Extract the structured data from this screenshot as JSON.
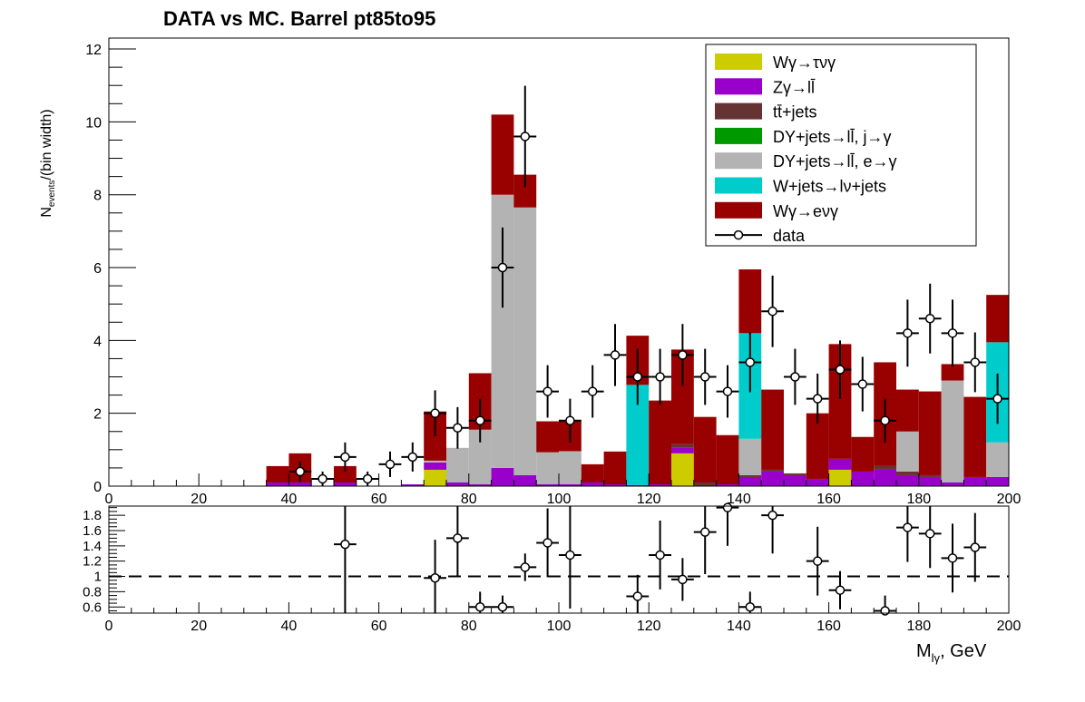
{
  "chart_data": {
    "type": "bar",
    "stacked": true,
    "title": "DATA vs MC. Barrel  pt85to95",
    "ylabel_main": "N",
    "ylabel_sub": "events",
    "ylabel_tail": "/(bin width)",
    "xlabel_main": "M",
    "xlabel_sub": "lγ",
    "xlabel_tail": ", GeV",
    "xlim": [
      0,
      200
    ],
    "ylim": [
      0,
      12.3
    ],
    "ratio_ylim": [
      0.52,
      1.92
    ],
    "bin_width": 5,
    "x_ticks": [
      0,
      20,
      40,
      60,
      80,
      100,
      120,
      140,
      160,
      180,
      200
    ],
    "y_ticks": [
      0,
      2,
      4,
      6,
      8,
      10,
      12
    ],
    "ratio_ticks": [
      0.6,
      0.8,
      1,
      1.2,
      1.4,
      1.6,
      1.8
    ],
    "ratio_reference": 1,
    "bin_edges_low": [
      0,
      5,
      10,
      15,
      20,
      25,
      30,
      35,
      40,
      45,
      50,
      55,
      60,
      65,
      70,
      75,
      80,
      85,
      90,
      95,
      100,
      105,
      110,
      115,
      120,
      125,
      130,
      135,
      140,
      145,
      150,
      155,
      160,
      165,
      170,
      175,
      180,
      185,
      190,
      195
    ],
    "series": [
      {
        "name": "Wγ→τνγ",
        "color": "#cccc00",
        "values": [
          0,
          0,
          0,
          0,
          0,
          0,
          0,
          0,
          0,
          0,
          0,
          0,
          0,
          0,
          0.45,
          0,
          0,
          0,
          0,
          0,
          0,
          0,
          0,
          0,
          0,
          0.9,
          0,
          0,
          0,
          0,
          0,
          0,
          0.45,
          0,
          0,
          0,
          0,
          0,
          0,
          0
        ]
      },
      {
        "name": "Zγ→ll̄",
        "color": "#9900cc",
        "values": [
          0,
          0,
          0,
          0,
          0,
          0,
          0,
          0.1,
          0.1,
          0,
          0.1,
          0,
          0,
          0.05,
          0.2,
          0.1,
          0.05,
          0.5,
          0.3,
          0.05,
          0.05,
          0.1,
          0.05,
          0.03,
          0.05,
          0.15,
          0,
          0.05,
          0.25,
          0.4,
          0.3,
          0.2,
          0.3,
          0.4,
          0.45,
          0.3,
          0.25,
          0.1,
          0.25,
          0.25
        ]
      },
      {
        "name": "tt̄+jets",
        "color": "#663333",
        "values": [
          0,
          0,
          0,
          0,
          0,
          0,
          0,
          0,
          0,
          0,
          0,
          0,
          0,
          0,
          0,
          0,
          0,
          0,
          0,
          0,
          0,
          0,
          0,
          0,
          0,
          0.1,
          0.1,
          0,
          0.05,
          0.05,
          0.05,
          0,
          0,
          0,
          0.1,
          0.1,
          0.05,
          0,
          0,
          0
        ]
      },
      {
        "name": "DY+jets→ll̄, j→γ",
        "color": "#009900",
        "values": [
          0,
          0,
          0,
          0,
          0,
          0,
          0,
          0,
          0,
          0,
          0,
          0,
          0,
          0,
          0,
          0,
          0,
          0,
          0,
          0,
          0,
          0,
          0,
          0,
          0,
          0,
          0,
          0,
          0,
          0,
          0,
          0,
          0,
          0,
          0,
          0,
          0,
          0,
          0,
          0
        ]
      },
      {
        "name": "DY+jets→ll̄, e→γ",
        "color": "#b3b3b3",
        "values": [
          0,
          0,
          0,
          0,
          0,
          0,
          0,
          0,
          0,
          0,
          0,
          0,
          0,
          0,
          0.05,
          0.95,
          1.5,
          7.5,
          7.35,
          0.88,
          0.91,
          0,
          0,
          0,
          0,
          0,
          0,
          0,
          1,
          0,
          0,
          0,
          0,
          0,
          0,
          1.1,
          0,
          2.8,
          0,
          0.95
        ]
      },
      {
        "name": "W+jets→lν+jets",
        "color": "#00cccc",
        "values": [
          0,
          0,
          0,
          0,
          0,
          0,
          0,
          0,
          0,
          0,
          0,
          0,
          0,
          0,
          0,
          0,
          0,
          0,
          0,
          0,
          0,
          0,
          0,
          2.75,
          0,
          0,
          0,
          0,
          2.9,
          0,
          0,
          0,
          0,
          0,
          0,
          0,
          0,
          0,
          0,
          2.75
        ]
      },
      {
        "name": "Wγ→eνγ",
        "color": "#990000",
        "values": [
          0,
          0,
          0,
          0,
          0,
          0,
          0,
          0.45,
          0.8,
          0,
          0.45,
          0,
          0,
          0,
          1.35,
          0,
          1.55,
          2.2,
          0.9,
          0.85,
          0.85,
          0.5,
          0.9,
          1.35,
          2.3,
          2.6,
          1.8,
          1.35,
          1.75,
          2.2,
          0,
          1.8,
          3.15,
          0.95,
          2.85,
          1.15,
          2.3,
          0.45,
          2.2,
          1.3
        ]
      }
    ],
    "data": {
      "name": "data",
      "x": [
        42.5,
        47.5,
        52.5,
        57.5,
        62.5,
        67.5,
        72.5,
        77.5,
        82.5,
        87.5,
        92.5,
        97.5,
        102.5,
        107.5,
        112.5,
        117.5,
        122.5,
        127.5,
        132.5,
        137.5,
        142.5,
        147.5,
        152.5,
        157.5,
        162.5,
        167.5,
        172.5,
        177.5,
        182.5,
        187.5,
        192.5,
        197.5
      ],
      "y": [
        0.4,
        0.2,
        0.8,
        0.2,
        0.6,
        0.8,
        2.0,
        1.6,
        1.8,
        6.0,
        9.6,
        2.6,
        1.8,
        2.6,
        3.6,
        3.0,
        3.0,
        3.6,
        3.0,
        2.6,
        3.4,
        4.8,
        3.0,
        2.4,
        3.2,
        2.8,
        1.8,
        4.2,
        4.6,
        4.2,
        3.4,
        2.4
      ],
      "yerr": [
        0.28,
        0.2,
        0.4,
        0.2,
        0.35,
        0.4,
        0.63,
        0.57,
        0.6,
        1.1,
        1.39,
        0.72,
        0.6,
        0.72,
        0.85,
        0.77,
        0.77,
        0.85,
        0.77,
        0.72,
        0.82,
        0.98,
        0.77,
        0.69,
        0.8,
        0.75,
        0.6,
        0.92,
        0.96,
        0.92,
        0.82,
        0.69
      ]
    },
    "ratio": {
      "x": [
        52.5,
        72.5,
        77.5,
        82.5,
        87.5,
        92.5,
        97.5,
        102.5,
        117.5,
        122.5,
        127.5,
        132.5,
        137.5,
        142.5,
        147.5,
        157.5,
        162.5,
        172.5,
        177.5,
        182.5,
        187.5,
        192.5
      ],
      "y": [
        1.42,
        0.98,
        1.5,
        0.6,
        0.6,
        1.12,
        1.44,
        1.28,
        0.74,
        1.28,
        0.96,
        1.58,
        1.9,
        0.6,
        1.8,
        1.2,
        0.82,
        0.55,
        1.64,
        1.56,
        1.24,
        1.38
      ],
      "yerr": [
        0.9,
        0.5,
        0.5,
        0.2,
        0.15,
        0.18,
        0.45,
        0.7,
        0.28,
        0.45,
        0.28,
        0.55,
        0.5,
        0.2,
        0.5,
        0.45,
        0.25,
        0.2,
        0.45,
        0.45,
        0.45,
        0.45
      ]
    }
  }
}
